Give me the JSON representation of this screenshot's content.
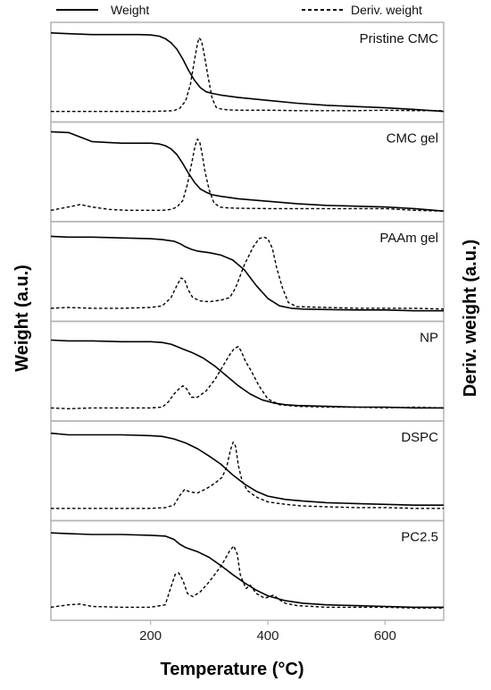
{
  "chart_data": {
    "type": "line",
    "xlabel": "Temperature (°C)",
    "ylabel_left": "Weight (a.u.)",
    "ylabel_right": "Deriv. weight (a.u.)",
    "xlim": [
      30,
      700
    ],
    "xticks": [
      200,
      400,
      600
    ],
    "legend": {
      "placement": "top",
      "entries": [
        {
          "label": "Weight",
          "style": "solid"
        },
        {
          "label": "Deriv. weight",
          "style": "dashed"
        }
      ]
    },
    "grid": false,
    "colors": {
      "line": "#000000",
      "frame": "#b4b4b4"
    },
    "panels": [
      {
        "label": "Pristine CMC",
        "weight": {
          "x": [
            30,
            60,
            100,
            150,
            180,
            200,
            215,
            225,
            235,
            245,
            255,
            265,
            275,
            285,
            295,
            305,
            320,
            350,
            400,
            450,
            500,
            550,
            600,
            650,
            700
          ],
          "y": [
            0.98,
            0.97,
            0.96,
            0.96,
            0.96,
            0.955,
            0.94,
            0.91,
            0.86,
            0.78,
            0.66,
            0.52,
            0.4,
            0.31,
            0.26,
            0.24,
            0.22,
            0.19,
            0.155,
            0.12,
            0.095,
            0.08,
            0.065,
            0.045,
            0.02
          ]
        },
        "deriv": {
          "x": [
            30,
            100,
            150,
            200,
            225,
            240,
            250,
            260,
            268,
            275,
            280,
            283,
            287,
            292,
            298,
            305,
            312,
            320,
            330,
            350,
            400,
            450,
            500,
            550,
            600,
            650,
            700
          ],
          "y": [
            0.02,
            0.02,
            0.02,
            0.02,
            0.025,
            0.03,
            0.06,
            0.15,
            0.35,
            0.65,
            0.85,
            0.92,
            0.88,
            0.7,
            0.45,
            0.18,
            0.07,
            0.05,
            0.04,
            0.035,
            0.035,
            0.03,
            0.03,
            0.03,
            0.035,
            0.03,
            0.03
          ]
        }
      },
      {
        "label": "CMC gel",
        "weight": {
          "x": [
            30,
            60,
            100,
            150,
            180,
            200,
            215,
            225,
            235,
            245,
            255,
            265,
            275,
            285,
            295,
            305,
            320,
            350,
            400,
            450,
            500,
            550,
            600,
            650,
            700
          ],
          "y": [
            0.99,
            0.98,
            0.87,
            0.85,
            0.85,
            0.85,
            0.84,
            0.82,
            0.78,
            0.71,
            0.6,
            0.48,
            0.37,
            0.29,
            0.25,
            0.22,
            0.2,
            0.17,
            0.14,
            0.11,
            0.09,
            0.08,
            0.07,
            0.05,
            0.02
          ]
        },
        "deriv": {
          "x": [
            30,
            60,
            80,
            100,
            130,
            160,
            200,
            220,
            235,
            245,
            255,
            263,
            270,
            276,
            280,
            284,
            288,
            293,
            300,
            308,
            318,
            330,
            350,
            400,
            450,
            500,
            550,
            600,
            650,
            700
          ],
          "y": [
            0.03,
            0.07,
            0.1,
            0.07,
            0.04,
            0.03,
            0.03,
            0.03,
            0.04,
            0.07,
            0.15,
            0.35,
            0.6,
            0.82,
            0.9,
            0.86,
            0.72,
            0.5,
            0.28,
            0.12,
            0.07,
            0.06,
            0.055,
            0.05,
            0.05,
            0.05,
            0.05,
            0.05,
            0.03,
            0.02
          ]
        }
      },
      {
        "label": "PAAm gel",
        "weight": {
          "x": [
            30,
            60,
            100,
            150,
            200,
            220,
            240,
            250,
            260,
            270,
            280,
            300,
            320,
            340,
            360,
            380,
            400,
            420,
            440,
            460,
            500,
            550,
            600,
            650,
            700
          ],
          "y": [
            0.93,
            0.92,
            0.92,
            0.91,
            0.9,
            0.89,
            0.87,
            0.84,
            0.8,
            0.77,
            0.75,
            0.73,
            0.7,
            0.64,
            0.52,
            0.33,
            0.17,
            0.08,
            0.05,
            0.04,
            0.035,
            0.03,
            0.03,
            0.02,
            0.02
          ]
        },
        "deriv": {
          "x": [
            30,
            60,
            100,
            150,
            200,
            220,
            235,
            245,
            252,
            258,
            264,
            272,
            285,
            300,
            320,
            335,
            345,
            360,
            375,
            385,
            393,
            400,
            408,
            415,
            425,
            435,
            450,
            500,
            550,
            600,
            650,
            700
          ],
          "y": [
            0.05,
            0.06,
            0.05,
            0.05,
            0.06,
            0.08,
            0.18,
            0.33,
            0.42,
            0.4,
            0.28,
            0.18,
            0.14,
            0.13,
            0.15,
            0.18,
            0.3,
            0.58,
            0.8,
            0.9,
            0.92,
            0.9,
            0.78,
            0.55,
            0.3,
            0.12,
            0.07,
            0.06,
            0.05,
            0.05,
            0.05,
            0.04
          ]
        }
      },
      {
        "label": "NP",
        "weight": {
          "x": [
            30,
            60,
            100,
            150,
            200,
            220,
            235,
            245,
            255,
            270,
            290,
            310,
            330,
            350,
            370,
            390,
            410,
            430,
            450,
            500,
            550,
            600,
            650,
            700
          ],
          "y": [
            0.88,
            0.87,
            0.87,
            0.86,
            0.86,
            0.85,
            0.83,
            0.8,
            0.77,
            0.73,
            0.66,
            0.56,
            0.44,
            0.32,
            0.22,
            0.15,
            0.11,
            0.09,
            0.08,
            0.07,
            0.06,
            0.06,
            0.05,
            0.05
          ]
        },
        "deriv": {
          "x": [
            30,
            60,
            100,
            150,
            200,
            220,
            230,
            240,
            248,
            255,
            262,
            270,
            280,
            295,
            310,
            325,
            335,
            343,
            350,
            355,
            362,
            372,
            385,
            400,
            420,
            450,
            500,
            550,
            600,
            650,
            700
          ],
          "y": [
            0.05,
            0.04,
            0.05,
            0.05,
            0.05,
            0.06,
            0.12,
            0.22,
            0.28,
            0.32,
            0.28,
            0.18,
            0.18,
            0.26,
            0.4,
            0.58,
            0.7,
            0.78,
            0.8,
            0.74,
            0.62,
            0.5,
            0.32,
            0.16,
            0.09,
            0.07,
            0.06,
            0.06,
            0.05,
            0.06,
            0.05
          ]
        }
      },
      {
        "label": "DSPC",
        "weight": {
          "x": [
            30,
            60,
            100,
            150,
            200,
            220,
            240,
            260,
            280,
            300,
            320,
            340,
            360,
            380,
            400,
            430,
            460,
            500,
            550,
            600,
            650,
            700
          ],
          "y": [
            0.96,
            0.94,
            0.94,
            0.94,
            0.93,
            0.92,
            0.89,
            0.84,
            0.77,
            0.68,
            0.58,
            0.45,
            0.34,
            0.25,
            0.19,
            0.15,
            0.13,
            0.11,
            0.1,
            0.09,
            0.08,
            0.08
          ]
        },
        "deriv": {
          "x": [
            30,
            60,
            100,
            150,
            200,
            225,
            240,
            250,
            258,
            268,
            280,
            295,
            310,
            322,
            330,
            336,
            341,
            345,
            350,
            356,
            365,
            380,
            400,
            430,
            460,
            500,
            550,
            600,
            650,
            700
          ],
          "y": [
            0.04,
            0.04,
            0.04,
            0.04,
            0.04,
            0.05,
            0.08,
            0.2,
            0.27,
            0.24,
            0.23,
            0.28,
            0.35,
            0.42,
            0.55,
            0.75,
            0.85,
            0.8,
            0.56,
            0.38,
            0.26,
            0.18,
            0.12,
            0.09,
            0.07,
            0.06,
            0.05,
            0.05,
            0.04,
            0.04
          ]
        }
      },
      {
        "label": "PC2.5",
        "weight": {
          "x": [
            30,
            60,
            100,
            150,
            200,
            225,
            240,
            250,
            260,
            280,
            300,
            320,
            340,
            360,
            380,
            400,
            430,
            460,
            500,
            550,
            600,
            650,
            700
          ],
          "y": [
            0.96,
            0.95,
            0.94,
            0.94,
            0.93,
            0.92,
            0.88,
            0.82,
            0.78,
            0.73,
            0.66,
            0.56,
            0.45,
            0.35,
            0.26,
            0.19,
            0.13,
            0.1,
            0.08,
            0.07,
            0.06,
            0.05,
            0.05
          ]
        },
        "deriv": {
          "x": [
            30,
            60,
            80,
            100,
            150,
            200,
            225,
            235,
            242,
            248,
            255,
            263,
            272,
            285,
            300,
            320,
            335,
            342,
            348,
            353,
            358,
            363,
            370,
            380,
            395,
            410,
            420,
            430,
            450,
            500,
            550,
            600,
            650,
            700
          ],
          "y": [
            0.05,
            0.08,
            0.09,
            0.06,
            0.05,
            0.05,
            0.08,
            0.3,
            0.45,
            0.47,
            0.38,
            0.22,
            0.18,
            0.24,
            0.36,
            0.55,
            0.74,
            0.8,
            0.7,
            0.45,
            0.36,
            0.28,
            0.32,
            0.22,
            0.16,
            0.2,
            0.14,
            0.1,
            0.07,
            0.05,
            0.05,
            0.05,
            0.04,
            0.04
          ]
        }
      }
    ]
  }
}
